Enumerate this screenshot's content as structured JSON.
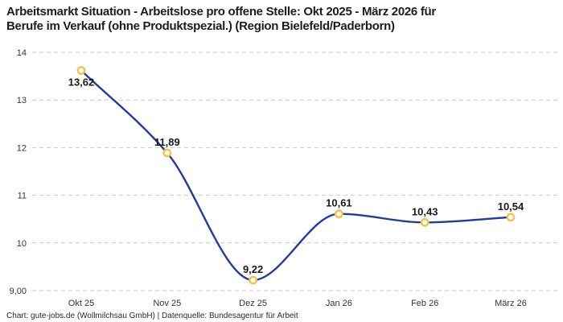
{
  "title": {
    "line1": "Arbeitsmarkt Situation - Arbeitslose pro offene Stelle: Okt 2025 - März 2026 für",
    "line2": "Berufe im Verkauf (ohne Produktspezial.) (Region Bielefeld/Paderborn)"
  },
  "footer": "Chart: gute-jobs.de (Wollmilchsau GmbH) | Datenquelle: Bundesagentur für Arbeit",
  "chart_data": {
    "type": "line",
    "title": "Arbeitsmarkt Situation - Arbeitslose pro offene Stelle: Okt 2025 - März 2026 für Berufe im Verkauf (ohne Produktspezial.) (Region Bielefeld/Paderborn)",
    "categories": [
      "Okt 25",
      "Nov 25",
      "Dez 25",
      "Jan 26",
      "Feb 26",
      "März 26"
    ],
    "values": [
      13.62,
      11.89,
      9.22,
      10.61,
      10.43,
      10.54
    ],
    "point_labels": [
      "13,62",
      "11,89",
      "9,22",
      "10,61",
      "10,43",
      "10,54"
    ],
    "label_positions": [
      "below",
      "above",
      "above",
      "above",
      "above",
      "above"
    ],
    "ylim": [
      9,
      14
    ],
    "yticks": [
      9,
      10,
      11,
      12,
      13,
      14
    ],
    "ytick_labels": [
      "9,00",
      "10",
      "11",
      "12",
      "13",
      "14"
    ],
    "xlabel": "",
    "ylabel": "",
    "grid": "horizontal-dashed",
    "legend": "none",
    "interpolation": "monotone",
    "colors": {
      "line": "#2539a0",
      "marker_stroke": "#f5c242",
      "marker_fill": "#ffffff",
      "grid": "#c9c9c9",
      "tick_text": "#333333",
      "label_text": "#191919"
    }
  }
}
